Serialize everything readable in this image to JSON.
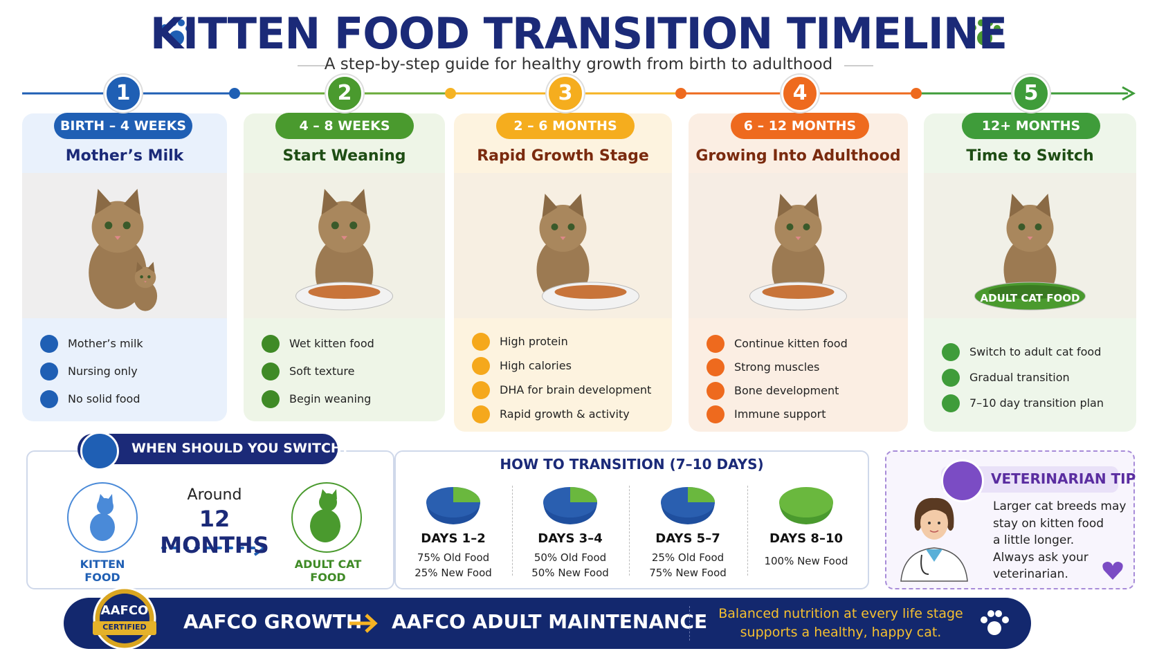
{
  "header": {
    "title": "KITTEN FOOD TRANSITION TIMELINE",
    "subtitle": "A step-by-step guide for healthy growth from birth to adulthood"
  },
  "stages": [
    {
      "number": "1",
      "range": "BIRTH – 4 WEEKS",
      "title": "Mother’s Milk",
      "items": [
        "Mother’s milk",
        "Nursing only",
        "No solid food"
      ]
    },
    {
      "number": "2",
      "range": "4 – 8 WEEKS",
      "title": "Start Weaning",
      "items": [
        "Wet kitten food",
        "Soft texture",
        "Begin weaning"
      ]
    },
    {
      "number": "3",
      "range": "2 – 6 MONTHS",
      "title": "Rapid Growth Stage",
      "items": [
        "High protein",
        "High calories",
        "DHA for brain development",
        "Rapid growth & activity"
      ]
    },
    {
      "number": "4",
      "range": "6 – 12 MONTHS",
      "title": "Growing Into Adulthood",
      "items": [
        "Continue kitten food",
        "Strong muscles",
        "Bone development",
        "Immune support"
      ]
    },
    {
      "number": "5",
      "range": "12+ MONTHS",
      "title": "Time to Switch",
      "image_label": "ADULT CAT FOOD",
      "items": [
        "Switch to adult cat food",
        "Gradual transition",
        "7–10 day transition plan"
      ]
    }
  ],
  "switch_panel": {
    "heading": "WHEN SHOULD YOU SWITCH?",
    "around": "Around",
    "age": "12 MONTHS",
    "from_label": "KITTEN FOOD",
    "to_label": "ADULT CAT FOOD"
  },
  "transition": {
    "heading": "HOW TO TRANSITION (7–10 DAYS)",
    "steps": [
      {
        "days": "DAYS 1–2",
        "lines": [
          "75% Old Food",
          "25% New Food"
        ]
      },
      {
        "days": "DAYS 3–4",
        "lines": [
          "50% Old Food",
          "50% New Food"
        ]
      },
      {
        "days": "DAYS 5–7",
        "lines": [
          "25% Old Food",
          "75% New Food"
        ]
      },
      {
        "days": "DAYS 8–10",
        "lines": [
          "100% New Food"
        ]
      }
    ]
  },
  "tip": {
    "heading": "VETERINARIAN TIP",
    "lines": [
      "Larger cat breeds may",
      "stay on kitten food",
      "a little longer.",
      "Always ask your",
      "veterinarian."
    ]
  },
  "footer": {
    "badge": [
      "AAFCO",
      "CERTIFIED"
    ],
    "from": "AAFCO GROWTH",
    "to": "AAFCO ADULT MAINTENANCE",
    "message": [
      "Balanced nutrition at every life stage",
      "supports a healthy, happy cat."
    ]
  }
}
